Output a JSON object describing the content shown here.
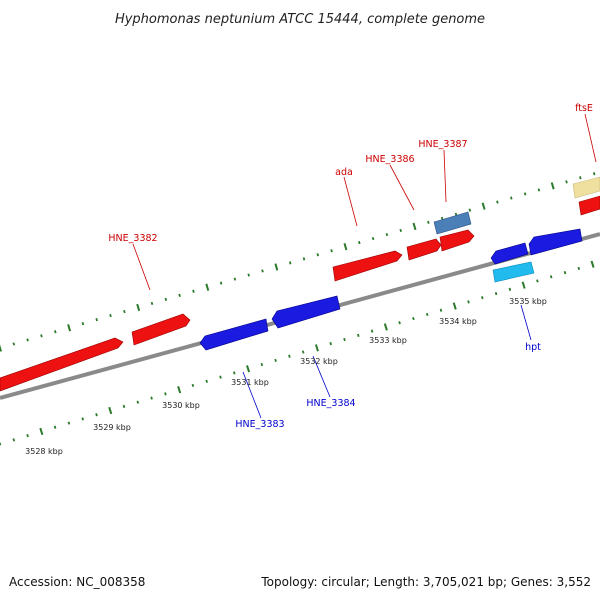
{
  "title": "Hyphomonas neptunium ATCC 15444, complete genome",
  "footer": {
    "accession": "Accession: NC_008358",
    "summary": "Topology: circular; Length: 3,705,021 bp; Genes: 3,552"
  },
  "colors": {
    "forward_gene": "#ee1111",
    "reverse_gene": "#1a1ae0",
    "feature_steelblue": "#4a7fb8",
    "feature_skyblue": "#22bbee",
    "feature_khaki": "#f0e0a0",
    "tick_marks": "#2a7a2a",
    "backbone": "#8a8a8a",
    "forward_label": "#cc0000",
    "reverse_label": "#0000cc"
  },
  "scale_unit": "kbp",
  "scale_labels": [
    "3528 kbp",
    "3529 kbp",
    "3530 kbp",
    "3531 kbp",
    "3532 kbp",
    "3533 kbp",
    "3534 kbp",
    "3535 kbp"
  ],
  "gene_labels": {
    "forward": [
      "HNE_3382",
      "ada",
      "HNE_3386",
      "HNE_3387",
      "ftsE"
    ],
    "reverse": [
      "HNE_3383",
      "HNE_3384",
      "hpt"
    ]
  }
}
